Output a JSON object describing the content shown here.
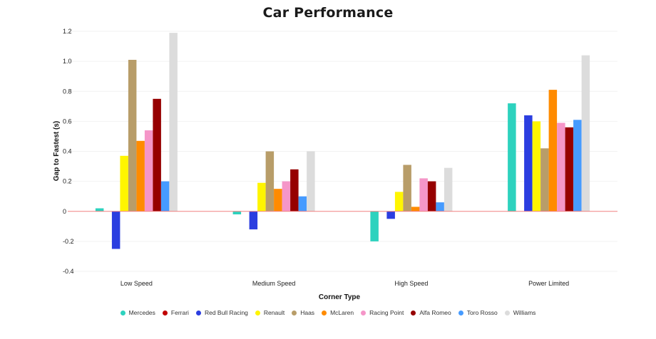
{
  "chart_data": {
    "type": "bar",
    "title": "Car Performance",
    "xlabel": "Corner Type",
    "ylabel": "Gap to Fastest (s)",
    "ylim": [
      -0.4,
      1.2
    ],
    "yticks": [
      "1.2",
      "1.0",
      "0.8",
      "0.6",
      "0.4",
      "0.2",
      "0",
      "-0.2",
      "-0.4"
    ],
    "categories": [
      "Low Speed",
      "Medium Speed",
      "High Speed",
      "Power Limited"
    ],
    "legend_position": "bottom",
    "grid": true,
    "series": [
      {
        "name": "Mercedes",
        "color": "#2dd2be",
        "values": [
          0.02,
          -0.02,
          -0.2,
          0.72
        ]
      },
      {
        "name": "Ferrari",
        "color": "#c00000",
        "values": [
          null,
          null,
          null,
          null
        ]
      },
      {
        "name": "Red Bull Racing",
        "color": "#2b3ee0",
        "values": [
          -0.25,
          -0.12,
          -0.05,
          0.64
        ]
      },
      {
        "name": "Renault",
        "color": "#fff500",
        "values": [
          0.37,
          0.19,
          0.13,
          0.6
        ]
      },
      {
        "name": "Haas",
        "color": "#b89d69",
        "values": [
          1.01,
          0.4,
          0.31,
          0.42
        ]
      },
      {
        "name": "McLaren",
        "color": "#ff8b00",
        "values": [
          0.47,
          0.15,
          0.03,
          0.81
        ]
      },
      {
        "name": "Racing Point",
        "color": "#f596c8",
        "values": [
          0.54,
          0.2,
          0.22,
          0.59
        ]
      },
      {
        "name": "Alfa Romeo",
        "color": "#960000",
        "values": [
          0.75,
          0.28,
          0.2,
          0.56
        ]
      },
      {
        "name": "Toro Rosso",
        "color": "#469bff",
        "values": [
          0.2,
          0.1,
          0.06,
          0.61
        ]
      },
      {
        "name": "Williams",
        "color": "#dcdcdc",
        "values": [
          1.19,
          0.4,
          0.29,
          1.04
        ]
      }
    ]
  }
}
